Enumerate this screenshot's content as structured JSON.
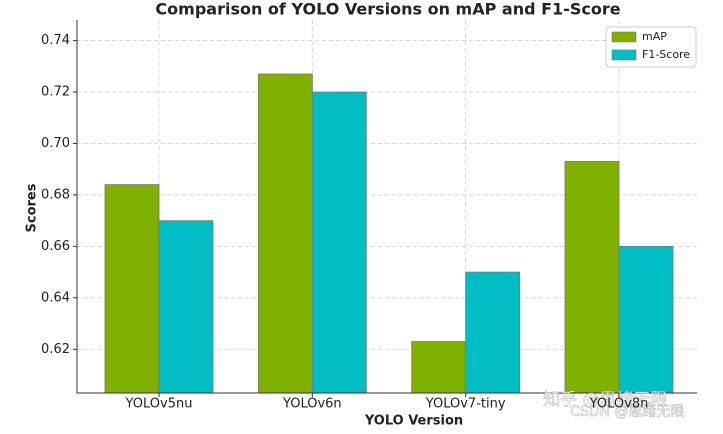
{
  "chart_data": {
    "type": "grouped_bar",
    "title": "Comparison of YOLO Versions on mAP and F1-Score",
    "x_label": "YOLO Version",
    "y_label": "Scores",
    "categories": [
      "YOLOv5nu",
      "YOLOv6n",
      "YOLOv7-tiny",
      "YOLOv8n"
    ],
    "series": [
      {
        "name": "mAP",
        "color": "#80b000",
        "values": [
          0.684,
          0.727,
          0.623,
          0.693
        ]
      },
      {
        "name": "F1-Score",
        "color": "#00bec4",
        "values": [
          0.67,
          0.72,
          0.65,
          0.66
        ]
      }
    ],
    "ylim": [
      0.603,
      0.748
    ],
    "yticks": [
      0.62,
      0.64,
      0.66,
      0.68,
      {
        "value": 0.7,
        "label": "0.70"
      },
      0.72,
      0.74
    ],
    "grid": true,
    "legend": "upper right",
    "watermarks": [
      "知乎 @思绪无限",
      "CSDN @思绪无限"
    ]
  }
}
